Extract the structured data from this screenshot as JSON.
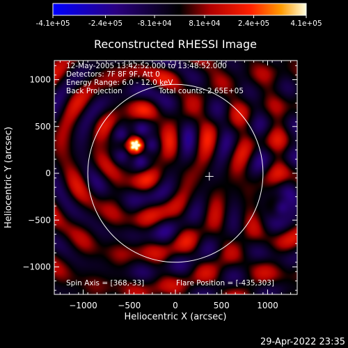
{
  "chart_data": {
    "type": "heatmap",
    "title": "Reconstructed RHESSI Image",
    "xlabel": "Heliocentric X (arcsec)",
    "ylabel": "Heliocentric Y (arcsec)",
    "xlim": [
      -1300,
      1300
    ],
    "ylim": [
      -1300,
      1300
    ],
    "xticks": [
      -1000,
      -500,
      0,
      500,
      1000
    ],
    "yticks": [
      -1000,
      -500,
      0,
      500,
      1000
    ],
    "colorbar": {
      "min": -410000,
      "max": 410000,
      "tick_values": [
        -410000,
        -240000,
        -81000,
        81000,
        240000,
        410000
      ],
      "tick_labels": [
        "-4.1e+05",
        "-2.4e+05",
        "-8.1e+04",
        "8.1e+04",
        "2.4e+05",
        "4.1e+05"
      ]
    },
    "info_lines": [
      "12-May-2005 13:42:52.000 to 13:48:52.000",
      "Detectors: 7F 8F 9F, Att 0",
      "Energy Range: 6.0 - 12.0 keV",
      "Back Projection"
    ],
    "total_counts": "Total counts: 2.65E+05",
    "spin_axis": "Spin Axis = [368,-33]",
    "flare_position": "Flare Position = [-435,303]",
    "solar_disk_radius": 950,
    "bright_source": [
      -435,
      303
    ],
    "dark_source": [
      1140,
      -360
    ],
    "cross_marker": [
      368,
      -33
    ],
    "timestamp": "29-Apr-2022 23:35"
  }
}
